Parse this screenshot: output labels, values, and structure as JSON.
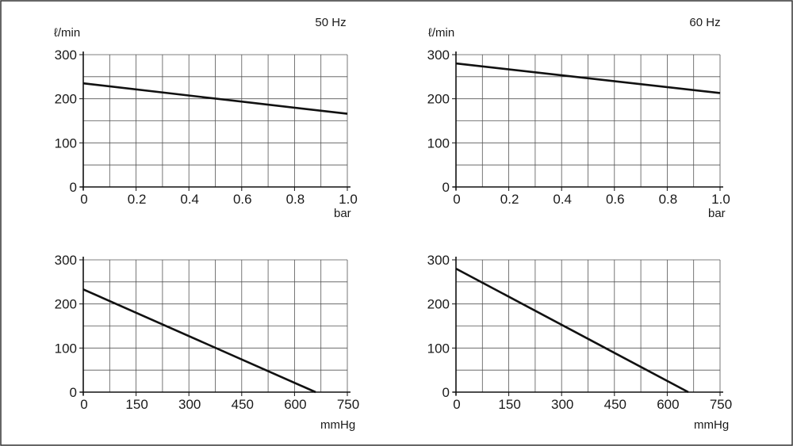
{
  "frame": {
    "border_color": "#333333"
  },
  "panels": {
    "top_left": {
      "header": "50 Hz",
      "y_unit": "ℓ/min",
      "x_unit": "bar",
      "x_tick_labels": [
        "0",
        "0.2",
        "0.4",
        "0.6",
        "0.8",
        "1.0"
      ],
      "y_tick_labels": [
        "0",
        "100",
        "200",
        "300"
      ]
    },
    "top_right": {
      "header": "60 Hz",
      "y_unit": "ℓ/min",
      "x_unit": "bar",
      "x_tick_labels": [
        "0",
        "0.2",
        "0.4",
        "0.6",
        "0.8",
        "1.0"
      ],
      "y_tick_labels": [
        "0",
        "100",
        "200",
        "300"
      ]
    },
    "bottom_left": {
      "x_unit": "mmHg",
      "x_tick_labels": [
        "0",
        "150",
        "300",
        "450",
        "600",
        "750"
      ],
      "y_tick_labels": [
        "0",
        "100",
        "200",
        "300"
      ]
    },
    "bottom_right": {
      "x_unit": "mmHg",
      "x_tick_labels": [
        "0",
        "150",
        "300",
        "450",
        "600",
        "750"
      ],
      "y_tick_labels": [
        "0",
        "100",
        "200",
        "300"
      ]
    }
  },
  "chart_data": [
    {
      "type": "line",
      "title": "50 Hz",
      "xlabel": "bar",
      "ylabel": "ℓ/min",
      "xlim": [
        0,
        1.0
      ],
      "ylim": [
        0,
        300
      ],
      "grid": true,
      "series": [
        {
          "x": [
            0,
            1.0
          ],
          "y": [
            235,
            166
          ]
        }
      ]
    },
    {
      "type": "line",
      "title": "60 Hz",
      "xlabel": "bar",
      "ylabel": "ℓ/min",
      "xlim": [
        0,
        1.0
      ],
      "ylim": [
        0,
        300
      ],
      "grid": true,
      "series": [
        {
          "x": [
            0,
            1.0
          ],
          "y": [
            280,
            213
          ]
        }
      ]
    },
    {
      "type": "line",
      "xlabel": "mmHg",
      "ylabel": "",
      "xlim": [
        0,
        750
      ],
      "ylim": [
        0,
        300
      ],
      "grid": true,
      "series": [
        {
          "x": [
            0,
            660
          ],
          "y": [
            233,
            0
          ]
        }
      ]
    },
    {
      "type": "line",
      "xlabel": "mmHg",
      "ylabel": "",
      "xlim": [
        0,
        750
      ],
      "ylim": [
        0,
        300
      ],
      "grid": true,
      "series": [
        {
          "x": [
            0,
            660
          ],
          "y": [
            280,
            0
          ]
        }
      ]
    }
  ]
}
